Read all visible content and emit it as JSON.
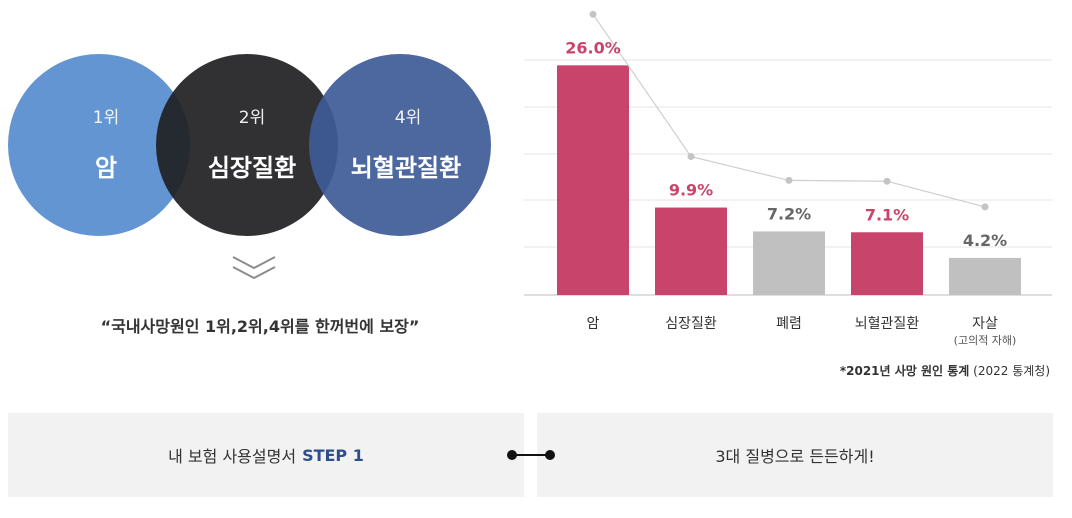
{
  "venn": {
    "circles": [
      {
        "rank": "1위",
        "name": "암",
        "color": "#5a8fd0"
      },
      {
        "rank": "2위",
        "name": "심장질환",
        "color": "#1f1f22"
      },
      {
        "rank": "4위",
        "name": "뇌혈관질환",
        "color": "#3e5a97"
      }
    ],
    "chevron_icon": "double-chevron-down-icon",
    "tagline": "“국내사망원인 1위,2위,4위를 한꺼번에 보장”"
  },
  "chart_data": {
    "type": "bar",
    "categories": [
      "암",
      "심장질환",
      "폐렴",
      "뇌혈관질환",
      "자살"
    ],
    "category_sublabels": [
      "",
      "",
      "",
      "",
      "(고의적 자해)"
    ],
    "values": [
      26.0,
      9.9,
      7.2,
      7.1,
      4.2
    ],
    "value_labels": [
      "26.0%",
      "9.9%",
      "7.2%",
      "7.1%",
      "4.2%"
    ],
    "highlighted": [
      true,
      true,
      false,
      true,
      false
    ],
    "colors": {
      "highlight": "#c9446b",
      "normal": "#c0c0c0",
      "highlight_text": "#c9446b",
      "normal_text": "#666666",
      "trend_line": "#cfcfcf",
      "trend_point": "#c4c4c4",
      "grid": "#e6e6e6"
    },
    "trend_line": true,
    "grid": true,
    "title": "",
    "xlabel": "",
    "ylabel": "",
    "ylim": [
      0,
      30
    ]
  },
  "source": {
    "bold": "*2021년 사망 원인 통계",
    "normal": " (2022 통계청)"
  },
  "bottom": {
    "left_text": "내 보험 사용설명서",
    "left_step": "STEP 1",
    "right_text": "3대 질병으로 든든하게!",
    "connector_icon": "connector-dots-icon"
  }
}
